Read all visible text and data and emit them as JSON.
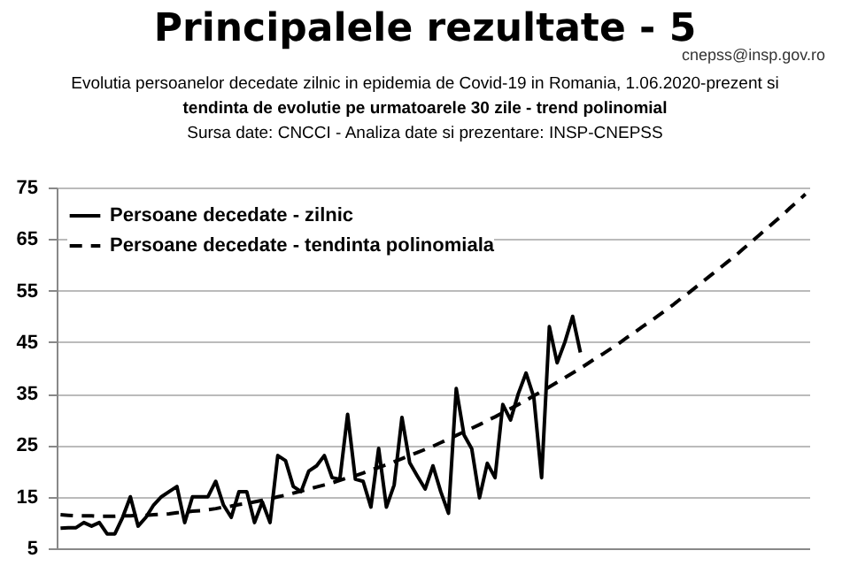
{
  "chart_data": {
    "type": "line",
    "title": "Principalele rezultate - 5",
    "subtitle": "Evolutia persoanelor decedate zilnic in epidemia de Covid-19 in Romania, 1.06.2020-prezent si",
    "annotations": [
      "tendinta de evolutie pe urmatoarele 30 zile - trend polinomial",
      "Sursa date: CNCCI  -  Analiza date si prezentare: INSP-CNEPSS",
      "cnepss@insp.gov.ro"
    ],
    "categories": [
      null,
      null,
      null,
      null,
      null,
      null,
      null,
      null,
      null,
      null,
      null,
      null,
      null,
      null,
      null,
      null,
      null,
      null,
      null,
      null,
      null,
      null,
      null,
      null,
      null,
      null,
      null,
      null,
      null,
      null,
      null,
      null,
      null,
      null,
      null,
      null,
      null,
      null,
      null,
      null,
      null,
      null,
      null,
      null,
      null,
      null,
      null,
      null,
      null,
      null,
      null,
      null,
      null,
      null,
      null,
      null,
      null,
      null,
      null,
      null,
      null,
      null,
      null,
      null,
      null,
      null,
      null,
      null,
      null,
      null,
      null,
      null,
      null,
      null,
      null,
      null,
      null,
      null,
      null,
      null,
      null,
      null,
      null,
      null,
      null,
      null,
      null,
      null,
      null,
      null,
      null,
      null,
      null,
      null,
      null,
      null,
      null
    ],
    "series": [
      {
        "name": "Persoane decedate - zilnic",
        "type": "line",
        "line_style": "solid",
        "color": "#000000",
        "values": [
          8.9,
          9,
          9,
          10,
          9.3,
          10,
          7.8,
          7.8,
          11,
          15,
          9.3,
          11,
          13.4,
          15,
          16,
          17,
          10,
          15,
          15,
          15,
          18,
          13.4,
          11,
          16,
          16,
          10,
          14,
          10,
          23,
          22,
          17,
          16,
          20,
          21,
          23,
          18.7,
          18.4,
          31,
          18.4,
          18,
          13,
          24.4,
          13,
          17.3,
          30.4,
          21.6,
          19,
          16.5,
          21,
          16,
          11.8,
          36,
          27,
          24.3,
          14.8,
          21.5,
          18.7,
          32.9,
          29.9,
          35,
          39,
          34.3,
          18.7,
          48,
          41,
          45,
          50,
          43,
          null,
          null,
          null,
          null,
          null,
          null,
          null,
          null,
          null,
          null,
          null,
          null,
          null,
          null,
          null,
          null,
          null,
          null,
          null,
          null,
          null,
          null,
          null,
          null,
          null,
          null,
          null,
          null,
          null
        ]
      },
      {
        "name": "Persoane decedate - tendinta polinomiala",
        "type": "line",
        "line_style": "dashed",
        "color": "#000000",
        "values": [
          11.5,
          11.4,
          11.3,
          11.3,
          11.3,
          11.2,
          11.2,
          11.2,
          11.3,
          11.3,
          11.4,
          11.4,
          11.5,
          11.6,
          11.7,
          11.9,
          12.0,
          12.2,
          12.3,
          12.5,
          12.7,
          13.0,
          13.2,
          13.5,
          13.7,
          14.0,
          14.3,
          14.6,
          15.0,
          15.3,
          15.7,
          16.1,
          16.5,
          16.9,
          17.3,
          17.7,
          18.2,
          18.7,
          19.1,
          19.6,
          20.2,
          20.7,
          21.2,
          21.8,
          22.4,
          23.0,
          23.6,
          24.2,
          24.8,
          25.5,
          26.2,
          26.9,
          27.6,
          28.3,
          29.0,
          29.8,
          30.5,
          31.3,
          32.1,
          32.9,
          33.7,
          34.6,
          35.4,
          36.3,
          37.2,
          38.1,
          39.0,
          39.9,
          40.9,
          41.9,
          42.8,
          43.8,
          44.8,
          45.9,
          46.9,
          48.0,
          49.0,
          50.1,
          51.2,
          52.3,
          53.5,
          54.6,
          55.8,
          57.0,
          58.2,
          59.4,
          60.6,
          61.8,
          63.1,
          64.4,
          65.7,
          67.0,
          68.3,
          69.6,
          71.0,
          72.3,
          73.7
        ]
      }
    ],
    "ylim": [
      5,
      75
    ],
    "yticks": [
      5,
      15,
      25,
      35,
      45,
      55,
      65,
      75
    ],
    "grid": "y",
    "legend": "top left",
    "tick_labels": "y"
  }
}
